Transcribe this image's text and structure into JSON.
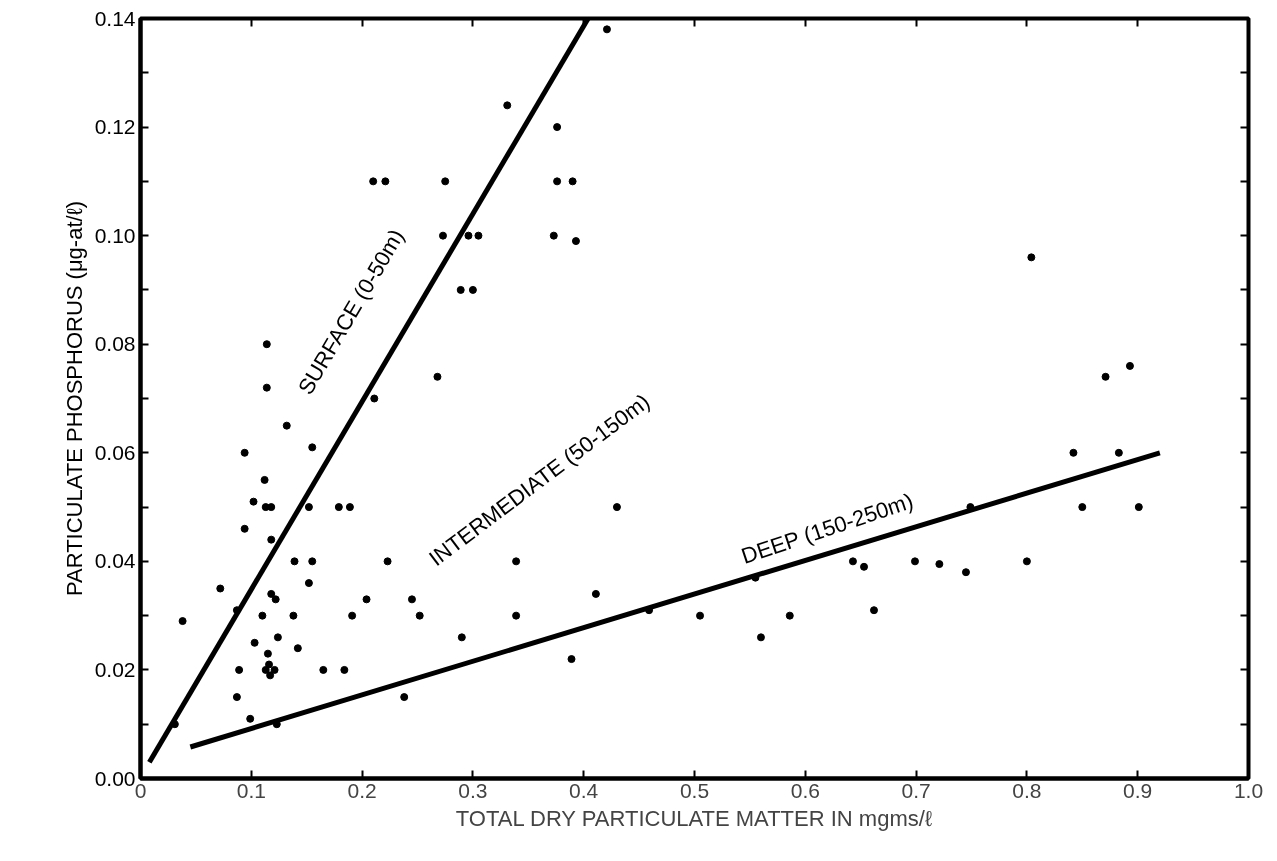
{
  "chart_data": {
    "type": "scatter",
    "xlabel": "TOTAL DRY PARTICULATE MATTER IN mgms/ℓ",
    "ylabel": "PARTICULATE PHOSPHORUS (μg-at/ℓ)",
    "xlim": [
      0,
      1.0
    ],
    "ylim": [
      0,
      0.14
    ],
    "xticks": [
      0,
      0.1,
      0.2,
      0.3,
      0.4,
      0.5,
      0.6,
      0.7,
      0.8,
      0.9,
      {
        "value": 1.0,
        "label": "1.0"
      }
    ],
    "yticks": [
      {
        "value": 0,
        "label": "0.00"
      },
      {
        "value": 0.01,
        "label": null
      },
      {
        "value": 0.02,
        "label": "0.02"
      },
      {
        "value": 0.03,
        "label": null
      },
      {
        "value": 0.04,
        "label": "0.04"
      },
      {
        "value": 0.05,
        "label": null
      },
      {
        "value": 0.06,
        "label": "0.06"
      },
      {
        "value": 0.07,
        "label": null
      },
      {
        "value": 0.08,
        "label": "0.08"
      },
      {
        "value": 0.09,
        "label": null
      },
      {
        "value": 0.1,
        "label": "0.10"
      },
      {
        "value": 0.11,
        "label": null
      },
      {
        "value": 0.12,
        "label": "0.12"
      },
      {
        "value": 0.13,
        "label": null
      },
      {
        "value": 0.14,
        "label": "0.14"
      }
    ],
    "grid": false,
    "marker": "circle",
    "series": [
      {
        "color": "#000000",
        "x": [
          0.114,
          0.114,
          0.211,
          0.132,
          0.155,
          0.094,
          0.112,
          0.102,
          0.113,
          0.118,
          0.152,
          0.179,
          0.189,
          0.094,
          0.118,
          0.223,
          0.139,
          0.155,
          0.072,
          0.152,
          0.118,
          0.122,
          0.204,
          0.087,
          0.11,
          0.138,
          0.191,
          0.038,
          0.103,
          0.124,
          0.142,
          0.115,
          0.116,
          0.113,
          0.121,
          0.117,
          0.089,
          0.165,
          0.184,
          0.087,
          0.031,
          0.099,
          0.123,
          0.21,
          0.221,
          0.275,
          0.273,
          0.296,
          0.305,
          0.289,
          0.3,
          0.421,
          0.331,
          0.376,
          0.376,
          0.39,
          0.373,
          0.393,
          0.268,
          0.43,
          0.339,
          0.245,
          0.252,
          0.339,
          0.29,
          0.411,
          0.389,
          0.238,
          0.459,
          0.505,
          0.56,
          0.586,
          0.555,
          0.643,
          0.653,
          0.662,
          0.804,
          0.893,
          0.871,
          0.842,
          0.883,
          0.85,
          0.901,
          0.749,
          0.699,
          0.721,
          0.745,
          0.8
        ],
        "values": [
          0.08,
          0.072,
          0.07,
          0.065,
          0.061,
          0.06,
          0.055,
          0.051,
          0.05,
          0.05,
          0.05,
          0.05,
          0.05,
          0.046,
          0.044,
          0.04,
          0.04,
          0.04,
          0.035,
          0.036,
          0.034,
          0.033,
          0.033,
          0.031,
          0.03,
          0.03,
          0.03,
          0.029,
          0.025,
          0.026,
          0.024,
          0.023,
          0.021,
          0.02,
          0.02,
          0.019,
          0.02,
          0.02,
          0.02,
          0.015,
          0.01,
          0.011,
          0.01,
          0.11,
          0.11,
          0.11,
          0.1,
          0.1,
          0.1,
          0.09,
          0.09,
          0.138,
          0.124,
          0.12,
          0.11,
          0.11,
          0.1,
          0.099,
          0.074,
          0.05,
          0.04,
          0.033,
          0.03,
          0.03,
          0.026,
          0.034,
          0.022,
          0.015,
          0.031,
          0.03,
          0.026,
          0.03,
          0.037,
          0.04,
          0.039,
          0.031,
          0.096,
          0.076,
          0.074,
          0.06,
          0.06,
          0.05,
          0.05,
          0.05,
          0.04,
          0.0395,
          0.038,
          0.04
        ]
      },
      {
        "type": "line",
        "color": "#000000",
        "marker": "none",
        "line_style": "solid",
        "x": [
          0.008,
          0.404
        ],
        "values": [
          0.003,
          0.14
        ]
      },
      {
        "type": "line",
        "color": "#000000",
        "marker": "none",
        "line_style": "solid",
        "x": [
          0.045,
          0.92
        ],
        "values": [
          0.0058,
          0.06
        ]
      }
    ],
    "annotations": [
      "SURFACE (0-50m)",
      "INTERMEDIATE (50-150m)",
      "DEEP (150-250m)"
    ]
  }
}
